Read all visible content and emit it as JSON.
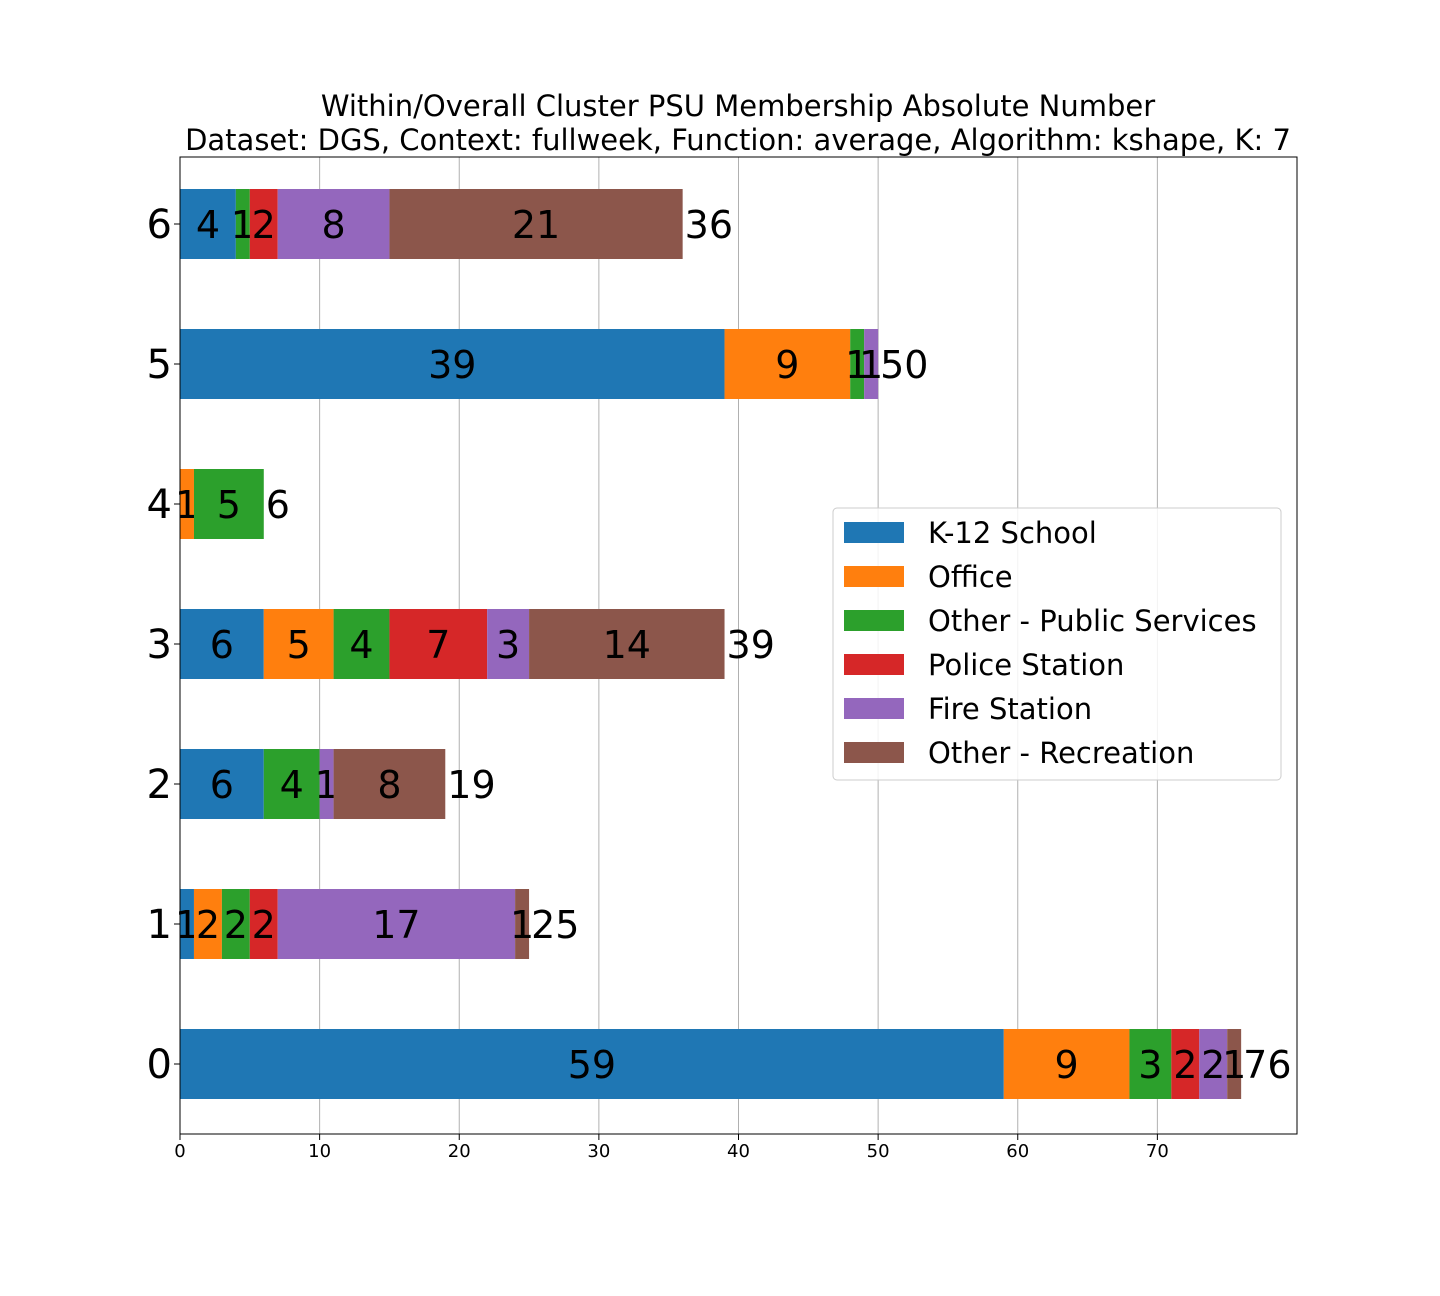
{
  "chart_data": {
    "type": "bar",
    "orientation": "horizontal",
    "stacked": true,
    "title_line1": "Within/Overall Cluster PSU Membership Absolute Number",
    "title_line2": "Dataset: DGS, Context: fullweek, Function: average, Algorithm: kshape, K: 7",
    "categories": [
      "0",
      "1",
      "2",
      "3",
      "4",
      "5",
      "6"
    ],
    "series": [
      {
        "name": "K-12 School",
        "color": "#1f77b4",
        "values": [
          59,
          1,
          6,
          6,
          0,
          39,
          4
        ]
      },
      {
        "name": "Office",
        "color": "#ff7f0e",
        "values": [
          9,
          2,
          0,
          5,
          1,
          9,
          0
        ]
      },
      {
        "name": "Other - Public Services",
        "color": "#2ca02c",
        "values": [
          3,
          2,
          4,
          4,
          5,
          1,
          1
        ]
      },
      {
        "name": "Police Station",
        "color": "#d62728",
        "values": [
          2,
          2,
          0,
          7,
          0,
          0,
          2
        ]
      },
      {
        "name": "Fire Station",
        "color": "#9467bd",
        "values": [
          2,
          17,
          1,
          3,
          0,
          1,
          8
        ]
      },
      {
        "name": "Other - Recreation",
        "color": "#8c564b",
        "values": [
          1,
          1,
          8,
          14,
          0,
          0,
          21
        ]
      }
    ],
    "totals": [
      76,
      25,
      19,
      39,
      6,
      50,
      36
    ],
    "xlim": [
      0,
      80
    ],
    "xticks": [
      0,
      10,
      20,
      30,
      40,
      50,
      60,
      70
    ],
    "grid": "x",
    "legend_position": "center-right"
  }
}
